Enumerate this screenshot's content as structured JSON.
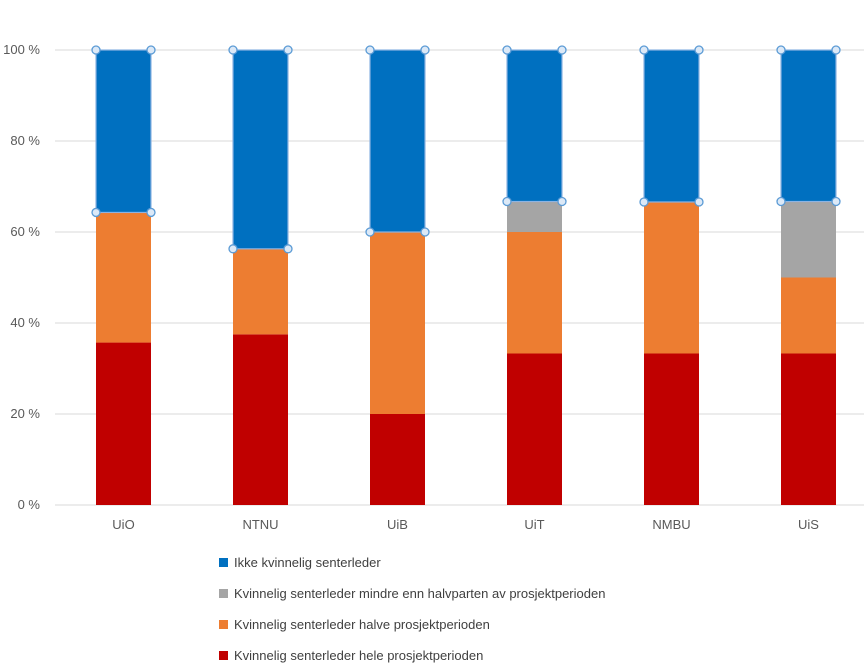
{
  "chart_data": {
    "type": "bar",
    "stacked": true,
    "percent_stacked": true,
    "categories": [
      "UiO",
      "NTNU",
      "UiB",
      "UiT",
      "NMBU",
      "UiS"
    ],
    "series": [
      {
        "name": "Kvinnelig senterleder hele prosjektperioden",
        "color": "#c00000",
        "values": [
          35.7,
          37.5,
          20,
          33.3,
          33.3,
          33.3
        ]
      },
      {
        "name": "Kvinnelig senterleder halve prosjektperioden",
        "color": "#ed7d31",
        "values": [
          28.6,
          18.8,
          40,
          26.7,
          33.3,
          16.7
        ]
      },
      {
        "name": "Kvinnelig senterleder mindre enn halvparten av prosjektperioden",
        "color": "#a5a5a5",
        "values": [
          0,
          0,
          0,
          6.7,
          0,
          16.7
        ]
      },
      {
        "name": "Ikke kvinnelig senterleder",
        "color": "#0070c0",
        "values": [
          35.7,
          43.7,
          40,
          33.3,
          33.4,
          33.3
        ]
      }
    ],
    "legend_order": [
      3,
      2,
      1,
      0
    ],
    "y_ticks": [
      "0 %",
      "20 %",
      "40 %",
      "60 %",
      "80 %",
      "100 %"
    ],
    "ylim": [
      0,
      100
    ],
    "grid": true,
    "legend_position": "bottom",
    "selected_series": "Ikke kvinnelig senterleder"
  }
}
